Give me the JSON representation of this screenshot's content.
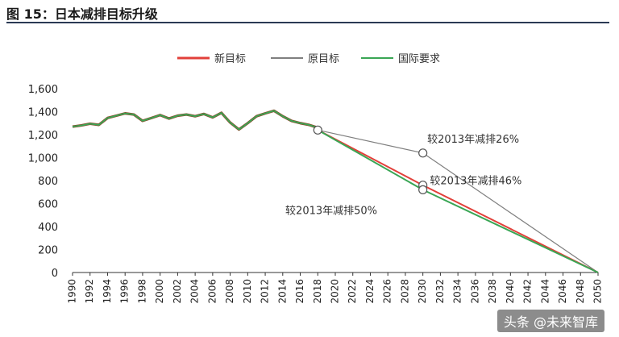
{
  "figure_title": "图 15：日本减排目标升级",
  "watermark": "头条 @未来智库",
  "chart_data": {
    "type": "line",
    "title": "",
    "xlabel": "",
    "ylabel": "",
    "ylim": [
      0,
      1600
    ],
    "yticks": [
      0,
      200,
      400,
      600,
      800,
      1000,
      1200,
      1400,
      1600
    ],
    "ytick_labels": [
      "0",
      "200",
      "400",
      "600",
      "800",
      "1,000",
      "1,200",
      "1,400",
      "1,600"
    ],
    "xlim": [
      1990,
      2050
    ],
    "xticks": [
      1990,
      1992,
      1994,
      1996,
      1998,
      2000,
      2002,
      2004,
      2006,
      2008,
      2010,
      2012,
      2014,
      2016,
      2018,
      2020,
      2022,
      2024,
      2026,
      2028,
      2030,
      2032,
      2034,
      2036,
      2038,
      2040,
      2042,
      2044,
      2046,
      2048,
      2050
    ],
    "grid": false,
    "legend_position": "top-center",
    "historical": {
      "x": [
        1990,
        1991,
        1992,
        1993,
        1994,
        1995,
        1996,
        1997,
        1998,
        1999,
        2000,
        2001,
        2002,
        2003,
        2004,
        2005,
        2006,
        2007,
        2008,
        2009,
        2010,
        2011,
        2012,
        2013,
        2014,
        2015,
        2016,
        2017,
        2018
      ],
      "y": [
        1270,
        1280,
        1295,
        1285,
        1345,
        1365,
        1385,
        1375,
        1320,
        1345,
        1370,
        1340,
        1365,
        1375,
        1360,
        1380,
        1350,
        1390,
        1305,
        1245,
        1300,
        1360,
        1385,
        1408,
        1360,
        1320,
        1300,
        1285,
        1260
      ]
    },
    "series": [
      {
        "name": "新目标",
        "color": "#e2403a",
        "x": [
          2018,
          2030,
          2050
        ],
        "y": [
          1240,
          760,
          0
        ]
      },
      {
        "name": "原目标",
        "color": "#7f7f7f",
        "x": [
          2018,
          2030,
          2050
        ],
        "y": [
          1240,
          1040,
          0
        ]
      },
      {
        "name": "国际要求",
        "color": "#3aa655",
        "x": [
          2018,
          2030,
          2050
        ],
        "y": [
          1240,
          720,
          0
        ]
      }
    ],
    "markers": [
      {
        "x": 2018,
        "y": 1240
      },
      {
        "x": 2030,
        "y": 1040
      },
      {
        "x": 2030,
        "y": 760
      },
      {
        "x": 2030,
        "y": 720
      }
    ],
    "annotations": [
      {
        "text": "较2013年减排26%",
        "x": 2030.5,
        "y": 1130
      },
      {
        "text": "较2013年减排46%",
        "x": 2030.8,
        "y": 770
      },
      {
        "text": "较2013年减排50%",
        "x": 2014.3,
        "y": 510
      }
    ]
  }
}
